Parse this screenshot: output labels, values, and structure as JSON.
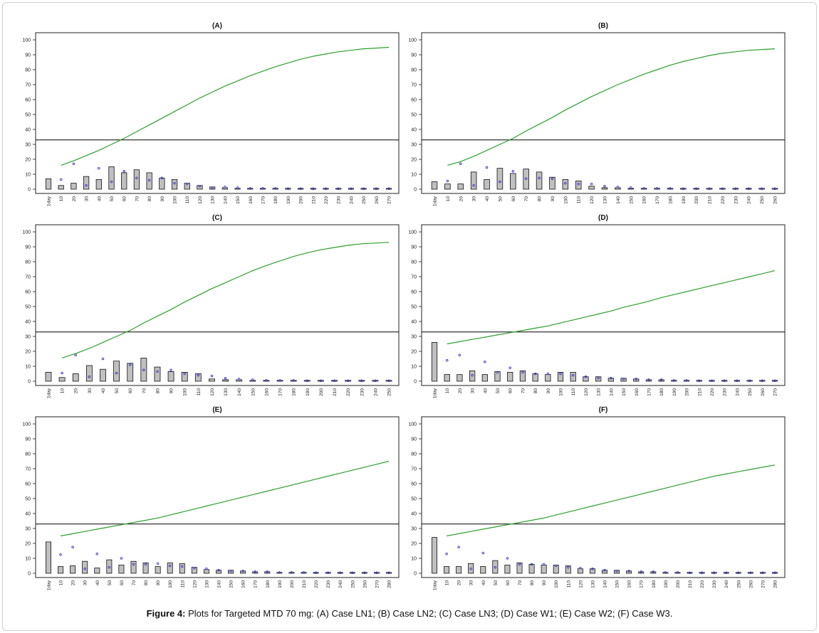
{
  "caption": {
    "label": "Figure 4:",
    "text": " Plots for Targeted MTD 70 mg: (A) Case LN1; (B) Case LN2; (C) Case LN3; (D) Case W1; (E) Case W2; (F) Case W3."
  },
  "colors": {
    "curve": "#2ca02c",
    "bar_fill": "#c0c0c0",
    "bar_stroke": "#111111",
    "point": "#3a3acc",
    "threshold": "#000000"
  },
  "chart_data": [
    {
      "type": "bar",
      "title": "(A)",
      "ylim": [
        0,
        100
      ],
      "yticks": [
        0,
        10,
        20,
        30,
        40,
        50,
        60,
        70,
        80,
        90,
        100
      ],
      "categories": [
        "1day",
        "10",
        "20",
        "30",
        "40",
        "50",
        "60",
        "70",
        "80",
        "90",
        "100",
        "110",
        "120",
        "130",
        "140",
        "150",
        "160",
        "170",
        "180",
        "190",
        "200",
        "210",
        "220",
        "230",
        "240",
        "250",
        "260",
        "270"
      ],
      "threshold": 33,
      "bars": [
        7,
        2.5,
        4,
        8.5,
        6.5,
        15,
        11,
        13,
        11,
        7.5,
        6.5,
        4,
        2.5,
        1.5,
        1,
        0.5,
        0.5,
        0.5,
        0.5,
        0.3,
        0.3,
        0.3,
        0.3,
        0.3,
        0.3,
        0.3,
        0.3,
        0.3
      ],
      "points": [
        null,
        6.5,
        17,
        2.5,
        14,
        5,
        12,
        7.5,
        6,
        7.5,
        4,
        3.5,
        2,
        1,
        1.5,
        1,
        0.5,
        0.5,
        0.5,
        0.3,
        0.3,
        0.3,
        0.3,
        0.3,
        0.3,
        0.3,
        0.3,
        0.3
      ],
      "curve": [
        null,
        16,
        19,
        22.5,
        26,
        30,
        34,
        38.5,
        43,
        47.5,
        52,
        56.5,
        61,
        65,
        69,
        72.5,
        76,
        79,
        82,
        84.5,
        87,
        89,
        90.5,
        92,
        93,
        94,
        94.5,
        95
      ]
    },
    {
      "type": "bar",
      "title": "(B)",
      "ylim": [
        0,
        100
      ],
      "yticks": [
        0,
        10,
        20,
        30,
        40,
        50,
        60,
        70,
        80,
        90,
        100
      ],
      "categories": [
        "1day",
        "10",
        "20",
        "30",
        "40",
        "50",
        "60",
        "70",
        "80",
        "90",
        "100",
        "110",
        "120",
        "130",
        "140",
        "150",
        "160",
        "170",
        "180",
        "190",
        "200",
        "210",
        "220",
        "230",
        "240",
        "250",
        "260"
      ],
      "threshold": 33,
      "bars": [
        5,
        3.5,
        3.5,
        11.5,
        6.5,
        14,
        10.5,
        13.5,
        11.5,
        8,
        6.5,
        5.5,
        2,
        1,
        1,
        0.5,
        0.5,
        0.5,
        0.3,
        0.3,
        0.3,
        0.3,
        0.3,
        0.3,
        0.3,
        0.3,
        0.3
      ],
      "points": [
        null,
        5.5,
        17,
        2.5,
        14.5,
        5,
        12,
        7,
        7.5,
        7,
        4,
        3.5,
        3.5,
        2,
        1.5,
        1,
        0.5,
        0.5,
        0.5,
        0.3,
        0.3,
        0.3,
        0.3,
        0.3,
        0.3,
        0.3,
        0.3
      ],
      "curve": [
        null,
        16,
        18.5,
        22,
        26,
        30,
        34,
        39,
        43.5,
        48,
        53,
        57.5,
        62,
        66,
        70,
        73.5,
        77,
        80,
        83,
        85.5,
        87.5,
        89.5,
        91,
        92,
        93,
        93.5,
        94
      ]
    },
    {
      "type": "bar",
      "title": "(C)",
      "ylim": [
        0,
        100
      ],
      "yticks": [
        0,
        10,
        20,
        30,
        40,
        50,
        60,
        70,
        80,
        90,
        100
      ],
      "categories": [
        "1day",
        "10",
        "20",
        "30",
        "40",
        "50",
        "60",
        "70",
        "80",
        "90",
        "100",
        "110",
        "120",
        "130",
        "140",
        "150",
        "160",
        "170",
        "180",
        "190",
        "200",
        "210",
        "220",
        "230",
        "240",
        "250"
      ],
      "threshold": 33,
      "bars": [
        6,
        2.5,
        5,
        10.5,
        8,
        13.5,
        12,
        15.5,
        9.5,
        6.5,
        6,
        5,
        1.5,
        1,
        1,
        0.5,
        0.5,
        0.5,
        0.3,
        0.3,
        0.3,
        0.3,
        0.3,
        0.3,
        0.3,
        0.3
      ],
      "points": [
        null,
        5.5,
        17.5,
        3,
        15,
        5.5,
        11,
        7.5,
        6.5,
        7.5,
        5,
        4,
        3.5,
        2,
        1.5,
        1,
        0.5,
        0.5,
        0.5,
        0.3,
        0.3,
        0.3,
        0.3,
        0.3,
        0.3,
        0.3
      ],
      "curve": [
        null,
        15.5,
        18.5,
        22,
        26,
        30,
        34,
        39,
        43.5,
        48,
        53,
        57.5,
        62,
        66,
        70,
        74,
        77.5,
        80.5,
        83.5,
        86,
        88,
        89.5,
        91,
        92,
        92.5,
        93
      ]
    },
    {
      "type": "bar",
      "title": "(D)",
      "ylim": [
        0,
        100
      ],
      "yticks": [
        0,
        10,
        20,
        30,
        40,
        50,
        60,
        70,
        80,
        90,
        100
      ],
      "categories": [
        "1day",
        "10",
        "20",
        "30",
        "40",
        "50",
        "60",
        "70",
        "80",
        "90",
        "100",
        "110",
        "120",
        "130",
        "140",
        "150",
        "160",
        "170",
        "180",
        "190",
        "200",
        "210",
        "220",
        "230",
        "240",
        "250",
        "260",
        "270"
      ],
      "threshold": 33,
      "bars": [
        26,
        4.5,
        4.5,
        7,
        4.5,
        6.5,
        6,
        7,
        5,
        4.5,
        6,
        6,
        3,
        3,
        2,
        2,
        1.5,
        1,
        1,
        0.5,
        0.5,
        0.3,
        0.3,
        0.3,
        0.3,
        0.3,
        0.3,
        0.3
      ],
      "points": [
        null,
        14,
        17.5,
        4,
        13,
        6,
        9,
        6,
        5,
        5,
        5,
        4,
        3,
        2,
        2,
        1.5,
        1.5,
        1,
        1,
        0.5,
        0.5,
        0.3,
        0.3,
        0.3,
        0.3,
        0.3,
        0.3,
        0.3
      ],
      "curve": [
        null,
        25,
        26.5,
        28,
        29.5,
        31,
        32.5,
        34,
        35.5,
        37,
        39,
        41,
        43,
        45,
        47,
        49.5,
        51.5,
        53.5,
        56,
        58,
        60,
        62,
        64,
        66,
        68,
        70,
        72,
        74
      ]
    },
    {
      "type": "bar",
      "title": "(E)",
      "ylim": [
        0,
        100
      ],
      "yticks": [
        0,
        10,
        20,
        30,
        40,
        50,
        60,
        70,
        80,
        90,
        100
      ],
      "categories": [
        "1day",
        "10",
        "20",
        "30",
        "40",
        "50",
        "60",
        "70",
        "80",
        "90",
        "100",
        "110",
        "120",
        "130",
        "140",
        "150",
        "160",
        "170",
        "180",
        "190",
        "200",
        "210",
        "220",
        "230",
        "240",
        "250",
        "260",
        "270",
        "280"
      ],
      "threshold": 33,
      "bars": [
        21,
        4.5,
        5,
        8,
        3.5,
        9,
        5.5,
        8,
        7,
        4.5,
        7,
        6.5,
        4,
        2.5,
        2,
        2,
        1.5,
        1,
        1,
        0.5,
        0.5,
        0.5,
        0.3,
        0.3,
        0.3,
        0.3,
        0.3,
        0.3,
        0.3
      ],
      "points": [
        null,
        12.5,
        17.5,
        3,
        13,
        4,
        10,
        6,
        6,
        6.5,
        5,
        4.5,
        3.5,
        3,
        2,
        1.5,
        1.5,
        1,
        1,
        0.5,
        0.5,
        0.5,
        0.3,
        0.3,
        0.3,
        0.3,
        0.3,
        0.3,
        0.3
      ],
      "curve": [
        null,
        25,
        26.5,
        28,
        29.5,
        31,
        32.5,
        34,
        35.5,
        37,
        39,
        41,
        43,
        45,
        47,
        49,
        51,
        53,
        55,
        57,
        59,
        61,
        63,
        65,
        67,
        69,
        71,
        73,
        75
      ]
    },
    {
      "type": "bar",
      "title": "(F)",
      "ylim": [
        0,
        100
      ],
      "yticks": [
        0,
        10,
        20,
        30,
        40,
        50,
        60,
        70,
        80,
        90,
        100
      ],
      "categories": [
        "1day",
        "10",
        "20",
        "30",
        "40",
        "50",
        "60",
        "70",
        "80",
        "90",
        "100",
        "110",
        "120",
        "130",
        "140",
        "150",
        "160",
        "170",
        "180",
        "190",
        "200",
        "210",
        "220",
        "230",
        "240",
        "250",
        "260",
        "270",
        "280"
      ],
      "threshold": 33,
      "bars": [
        24,
        4.5,
        4.5,
        6.5,
        4.5,
        8.5,
        5.5,
        7,
        6,
        5.5,
        5.5,
        5,
        3,
        3,
        2,
        2,
        1.5,
        1,
        1,
        0.5,
        0.5,
        0.3,
        0.3,
        0.3,
        0.3,
        0.3,
        0.3,
        0.3,
        0.3
      ],
      "points": [
        null,
        13,
        17.5,
        3,
        13.5,
        4,
        10,
        6,
        6,
        6,
        5,
        4,
        3.5,
        3,
        2,
        1.5,
        1.5,
        1,
        1,
        0.5,
        0.5,
        0.3,
        0.3,
        0.3,
        0.3,
        0.3,
        0.3,
        0.3,
        0.3
      ],
      "curve": [
        null,
        25,
        26.5,
        28,
        29.5,
        31,
        32.5,
        34,
        35.5,
        37,
        39,
        41,
        43,
        45,
        47,
        49,
        51,
        53,
        55,
        57,
        59,
        61,
        63,
        65,
        66.5,
        68,
        69.5,
        71,
        72.5
      ]
    }
  ]
}
